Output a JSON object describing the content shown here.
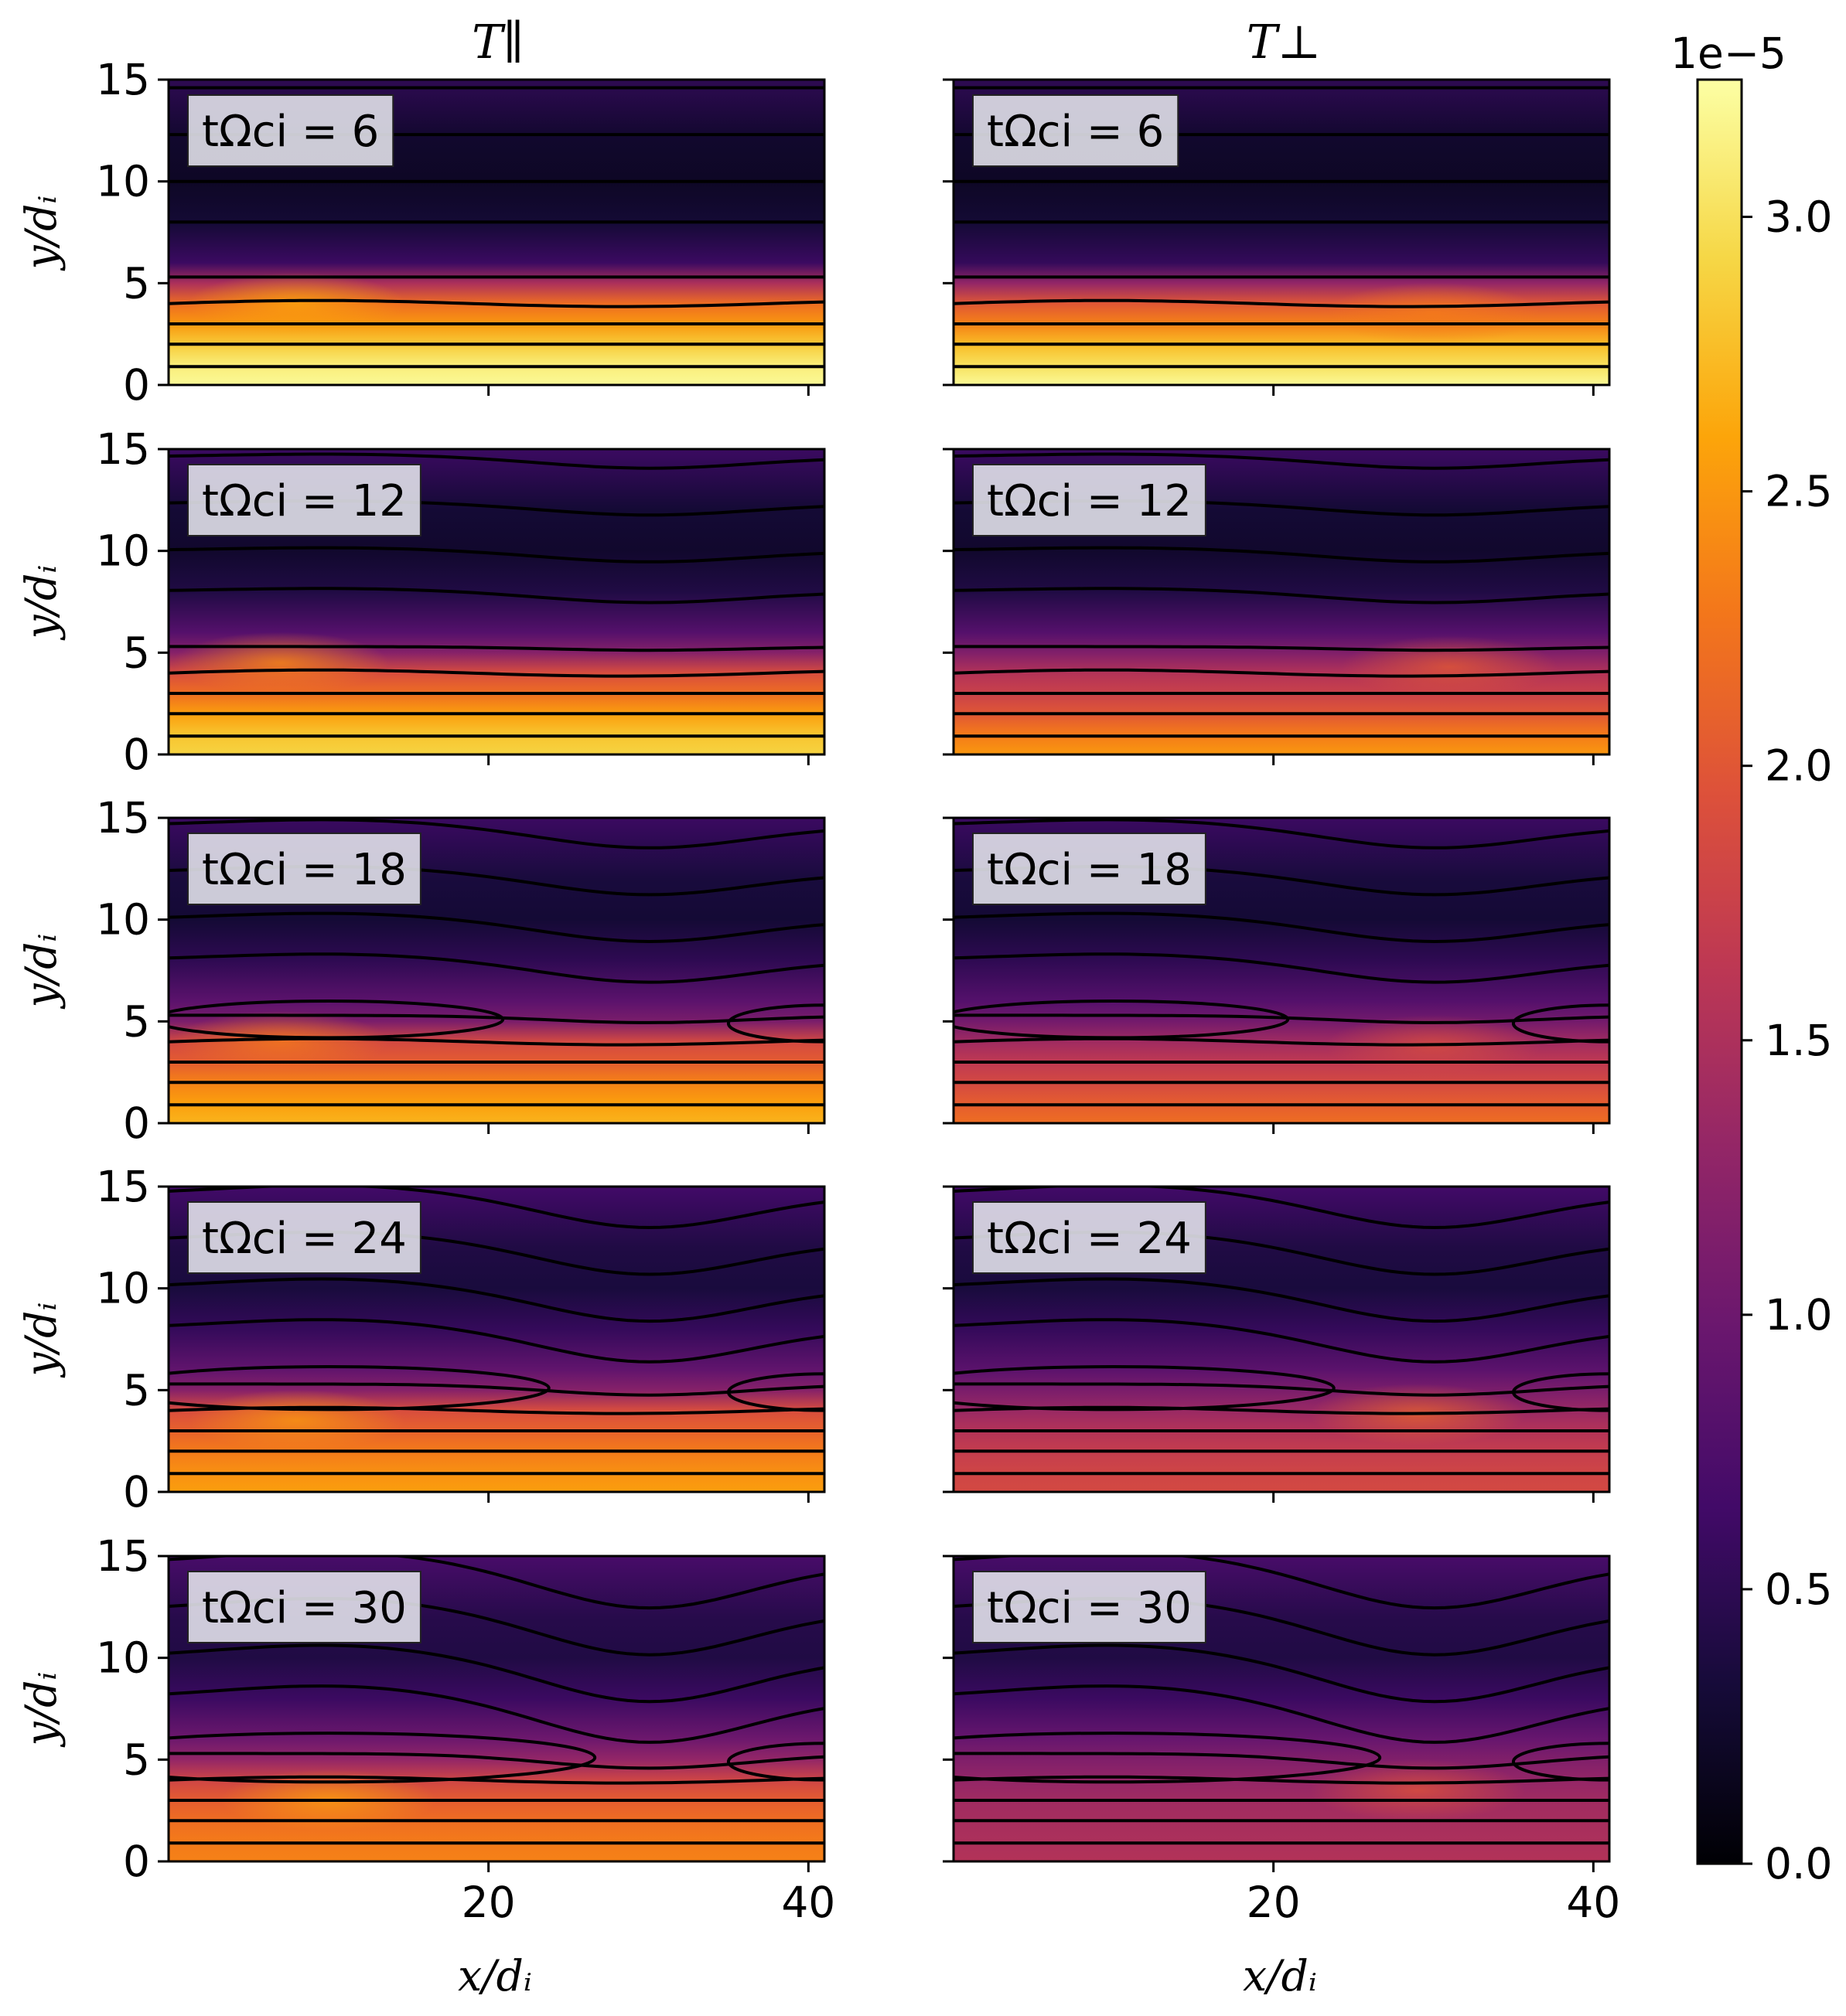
{
  "figure": {
    "column_titles": [
      "T∥",
      "T⊥"
    ],
    "xlabel": "x/dᵢ",
    "ylabel": "y/dᵢ",
    "x_ticks": [
      20,
      40
    ],
    "x_tick_labels": [
      "20",
      "40"
    ],
    "y_ticks": [
      0,
      5,
      10,
      15
    ],
    "y_tick_labels": [
      "0",
      "5",
      "10",
      "15"
    ],
    "time_labels": [
      "tΩci = 6",
      "tΩci = 12",
      "tΩci = 18",
      "tΩci = 24",
      "tΩci = 30"
    ],
    "colorbar": {
      "multiplier_label": "1e−5",
      "range": [
        0.0,
        3.25
      ],
      "ticks": [
        0.0,
        0.5,
        1.0,
        1.5,
        2.0,
        2.5,
        3.0
      ],
      "tick_labels": [
        "0.0",
        "0.5",
        "1.0",
        "1.5",
        "2.0",
        "2.5",
        "3.0"
      ],
      "colormap": "inferno"
    }
  },
  "chart_data": {
    "type": "heatmap",
    "title": "",
    "xlabel": "x/dᵢ",
    "ylabel": "y/dᵢ",
    "xlim": [
      0,
      41
    ],
    "ylim": [
      0,
      15
    ],
    "colorbar_units": "1e−5",
    "vlim": [
      0.0,
      3.25
    ],
    "columns": [
      "T∥",
      "T⊥"
    ],
    "times": [
      6,
      12,
      18,
      24,
      30
    ],
    "panels": [
      [
        {
          "time": 6,
          "profile_y": [
            0,
            1,
            2,
            3,
            4,
            5,
            6,
            8,
            10,
            12,
            15
          ],
          "profile_value": [
            3.2,
            3.1,
            2.85,
            2.5,
            2.2,
            1.5,
            0.6,
            0.3,
            0.2,
            0.25,
            0.5
          ],
          "hotspot": {
            "x": 8,
            "y": 4,
            "value": 2.6
          }
        },
        {
          "time": 12,
          "profile_y": [
            0,
            1,
            2,
            3,
            4,
            5,
            6,
            8,
            10,
            12,
            15
          ],
          "profile_value": [
            2.9,
            2.8,
            2.55,
            2.2,
            1.9,
            1.2,
            0.8,
            0.4,
            0.25,
            0.3,
            0.6
          ],
          "hotspot": {
            "x": 7,
            "y": 4.5,
            "value": 2.4
          }
        },
        {
          "time": 18,
          "profile_y": [
            0,
            1,
            2,
            3,
            4,
            5,
            6,
            8,
            10,
            12,
            15
          ],
          "profile_value": [
            2.7,
            2.55,
            2.35,
            2.05,
            1.85,
            1.1,
            0.85,
            0.5,
            0.3,
            0.35,
            0.6
          ],
          "hotspot": {
            "x": 7,
            "y": 4,
            "value": 2.3
          }
        },
        {
          "time": 24,
          "profile_y": [
            0,
            1,
            2,
            3,
            4,
            5,
            6,
            8,
            10,
            12,
            15
          ],
          "profile_value": [
            2.55,
            2.45,
            2.3,
            2.1,
            1.9,
            1.2,
            0.9,
            0.55,
            0.35,
            0.4,
            0.65
          ],
          "hotspot": {
            "x": 8,
            "y": 3.5,
            "value": 2.5
          }
        },
        {
          "time": 30,
          "profile_y": [
            0,
            1,
            2,
            3,
            4,
            5,
            6,
            8,
            10,
            12,
            15
          ],
          "profile_value": [
            2.35,
            2.3,
            2.2,
            2.05,
            1.8,
            1.3,
            1.0,
            0.6,
            0.4,
            0.45,
            0.7
          ],
          "hotspot": {
            "x": 10,
            "y": 3,
            "value": 2.55
          }
        }
      ],
      [
        {
          "time": 6,
          "profile_y": [
            0,
            1,
            2,
            3,
            4,
            5,
            6,
            8,
            10,
            12,
            15
          ],
          "profile_value": [
            3.2,
            3.0,
            2.75,
            2.35,
            2.0,
            1.3,
            0.55,
            0.3,
            0.2,
            0.25,
            0.5
          ],
          "hotspot": {
            "x": 30,
            "y": 3.5,
            "value": 2.3
          }
        },
        {
          "time": 12,
          "profile_y": [
            0,
            1,
            2,
            3,
            4,
            5,
            6,
            8,
            10,
            12,
            15
          ],
          "profile_value": [
            2.5,
            2.3,
            2.0,
            1.75,
            1.55,
            1.15,
            0.8,
            0.4,
            0.25,
            0.3,
            0.6
          ],
          "hotspot": {
            "x": 31,
            "y": 4.3,
            "value": 2.0
          }
        },
        {
          "time": 18,
          "profile_y": [
            0,
            1,
            2,
            3,
            4,
            5,
            6,
            8,
            10,
            12,
            15
          ],
          "profile_value": [
            2.2,
            2.05,
            1.85,
            1.65,
            1.4,
            1.05,
            0.8,
            0.5,
            0.3,
            0.35,
            0.6
          ],
          "hotspot": {
            "x": 30,
            "y": 3.8,
            "value": 1.9
          }
        },
        {
          "time": 24,
          "profile_y": [
            0,
            1,
            2,
            3,
            4,
            5,
            6,
            8,
            10,
            12,
            15
          ],
          "profile_value": [
            1.85,
            1.8,
            1.7,
            1.55,
            1.35,
            1.1,
            0.85,
            0.55,
            0.35,
            0.4,
            0.65
          ],
          "hotspot": {
            "x": 29,
            "y": 3.8,
            "value": 2.1
          }
        },
        {
          "time": 30,
          "profile_y": [
            0,
            1,
            2,
            3,
            4,
            5,
            6,
            8,
            10,
            12,
            15
          ],
          "profile_value": [
            1.55,
            1.5,
            1.45,
            1.4,
            1.3,
            1.15,
            0.95,
            0.6,
            0.4,
            0.45,
            0.7
          ],
          "hotspot": {
            "x": 29,
            "y": 3.5,
            "value": 1.95
          }
        }
      ]
    ],
    "contour_levels_y_at_x0": [
      0.9,
      2.0,
      3.0,
      4.0,
      5.3,
      8.0,
      10.0,
      12.3,
      14.6
    ]
  }
}
